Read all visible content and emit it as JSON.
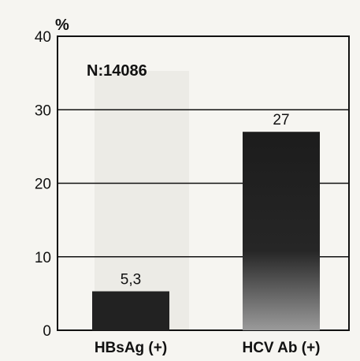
{
  "chart_data": {
    "type": "bar",
    "categories": [
      "HBsAg (+)",
      "HCV Ab (+)"
    ],
    "values": [
      5.3,
      27
    ],
    "data_labels": [
      "5,3",
      "27"
    ],
    "ylabel": "%",
    "ylim": [
      0,
      40
    ],
    "yticks": [
      "0",
      "10",
      "20",
      "30",
      "40"
    ],
    "annotation": "N:14086",
    "grid": true,
    "bar_color": "#222222"
  }
}
